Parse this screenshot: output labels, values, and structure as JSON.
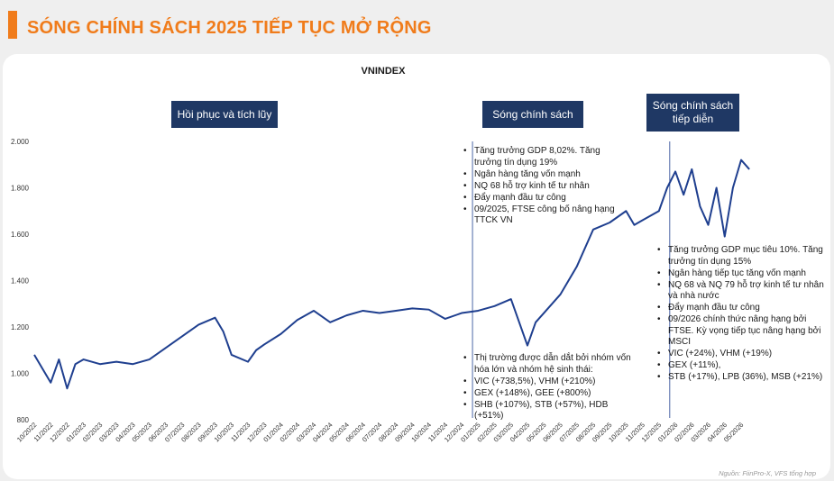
{
  "header": {
    "title": "SÓNG CHÍNH SÁCH 2025 TIẾP TỤC MỞ RỘNG"
  },
  "phases": [
    "Hồi phục và tích lũy",
    "Sóng chính sách",
    "Sóng chính sách\ntiếp diễn"
  ],
  "notes": {
    "policy_macro": [
      "Tăng trưởng GDP 8,02%. Tăng trưởng tín dụng 19%",
      "Ngân hàng tăng vốn mạnh",
      "NQ 68 hỗ trợ kinh tế tư nhân",
      "Đẩy mạnh đầu tư công",
      "09/2025, FTSE công bố nâng hạng TTCK VN"
    ],
    "policy_stocks_intro": "Thị trường được dẫn dắt bởi nhóm vốn hóa lớn và nhóm hệ sinh thái:",
    "policy_stocks": [
      "VIC (+738,5%), VHM (+210%)",
      "GEX (+148%), GEE (+800%)",
      "SHB (+107%), STB (+57%), HDB (+51%)"
    ],
    "continued": [
      "Tăng trưởng GDP mục tiêu 10%. Tăng trưởng tín dụng 15%",
      "Ngân hàng tiếp tục tăng vốn mạnh",
      "NQ 68 và NQ 79 hỗ trợ kinh tế  tư nhân và nhà nước",
      "Đẩy mạnh đầu tư công",
      "09/2026 chính thức nâng hạng bởi FTSE. Kỳ vọng tiếp tục nâng hạng bởi MSCI",
      "VIC (+24%), VHM (+19%)",
      "GEX (+11%),",
      "STB (+17%), LPB (36%), MSB (+21%)"
    ]
  },
  "source": "Nguồn: FiinPro-X, VFS tổng hợp",
  "colors": {
    "accent": "#f07c1b",
    "line": "#1f3f8f",
    "phase_box": "#1f3864"
  },
  "chart_data": {
    "type": "line",
    "title": "VNINDEX",
    "xlabel": "",
    "ylabel": "",
    "ylim": [
      800,
      2000
    ],
    "yticks": [
      "800",
      "1.000",
      "1.200",
      "1.400",
      "1.600",
      "1.800",
      "2.000"
    ],
    "x_tick_labels": [
      "10/2022",
      "11/2022",
      "12/2022",
      "01/2023",
      "02/2023",
      "03/2023",
      "04/2023",
      "05/2023",
      "06/2023",
      "07/2023",
      "08/2023",
      "09/2023",
      "10/2023",
      "11/2023",
      "12/2023",
      "01/2024",
      "02/2024",
      "03/2024",
      "04/2024",
      "05/2024",
      "06/2024",
      "07/2024",
      "08/2024",
      "09/2024",
      "10/2024",
      "11/2024",
      "12/2024",
      "01/2025",
      "02/2025",
      "03/2025",
      "04/2025",
      "05/2025",
      "06/2025",
      "07/2025",
      "08/2025",
      "09/2025",
      "10/2025",
      "11/2025",
      "12/2025",
      "01/2026",
      "02/2026",
      "03/2026",
      "04/2026",
      "05/2026"
    ],
    "grid": false,
    "phase_boundaries": [
      "12/2024",
      "12/2025"
    ],
    "series": [
      {
        "x": [
          "10/2022",
          "11/2022",
          "11/2022",
          "12/2022",
          "12/2022",
          "01/2023",
          "02/2023",
          "03/2023",
          "04/2023",
          "05/2023",
          "06/2023",
          "07/2023",
          "08/2023",
          "09/2023",
          "09/2023",
          "10/2023",
          "11/2023",
          "11/2023",
          "12/2023",
          "01/2024",
          "02/2024",
          "03/2024",
          "04/2024",
          "05/2024",
          "06/2024",
          "07/2024",
          "08/2024",
          "09/2024",
          "10/2024",
          "11/2024",
          "12/2024",
          "01/2025",
          "02/2025",
          "03/2025",
          "04/2025",
          "04/2025",
          "05/2025",
          "06/2025",
          "07/2025",
          "08/2025",
          "09/2025",
          "10/2025",
          "10/2025",
          "11/2025",
          "12/2025",
          "12/2025",
          "01/2026",
          "01/2026",
          "02/2026",
          "02/2026",
          "03/2026",
          "03/2026",
          "04/2026",
          "04/2026",
          "05/2026",
          "05/2026"
        ],
        "values": [
          1080,
          960,
          1060,
          935,
          1040,
          1060,
          1040,
          1050,
          1040,
          1060,
          1110,
          1160,
          1210,
          1240,
          1180,
          1080,
          1050,
          1100,
          1125,
          1170,
          1230,
          1270,
          1220,
          1250,
          1270,
          1260,
          1270,
          1280,
          1275,
          1235,
          1260,
          1270,
          1290,
          1320,
          1120,
          1220,
          1260,
          1340,
          1460,
          1620,
          1650,
          1700,
          1640,
          1660,
          1700,
          1800,
          1870,
          1770,
          1880,
          1720,
          1640,
          1800,
          1590,
          1800,
          1920,
          1880
        ]
      }
    ]
  }
}
